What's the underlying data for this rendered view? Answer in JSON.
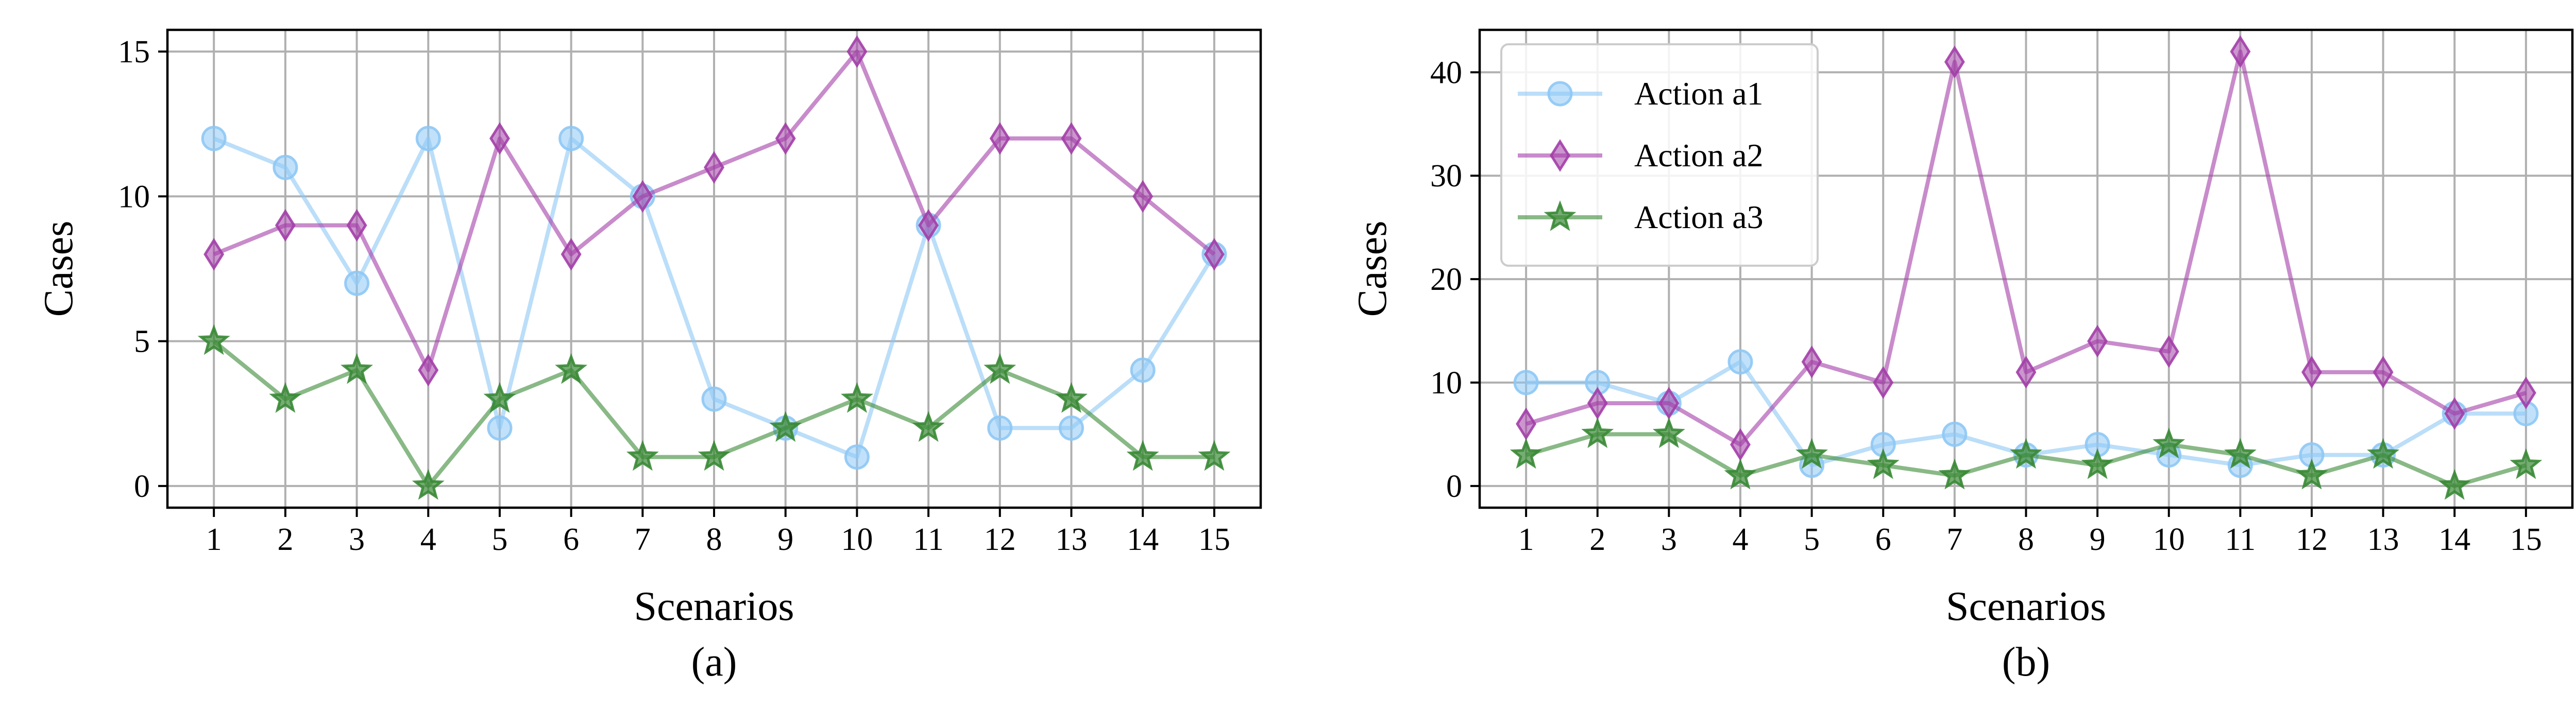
{
  "chart_data": [
    {
      "type": "line",
      "panel_label": "(a)",
      "xlabel": "Scenarios",
      "ylabel": "Cases",
      "x": [
        1,
        2,
        3,
        4,
        5,
        6,
        7,
        8,
        9,
        10,
        11,
        12,
        13,
        14,
        15
      ],
      "xlim": [
        0.35,
        15.65
      ],
      "ylim": [
        -0.75,
        15.75
      ],
      "yticks": [
        0,
        5,
        10,
        15
      ],
      "grid": true,
      "legend": null,
      "series": [
        {
          "name": "Action a1",
          "color": "#8ec8f5",
          "marker": "circle",
          "values": [
            12,
            11,
            7,
            12,
            2,
            12,
            10,
            3,
            2,
            1,
            9,
            2,
            2,
            4,
            8
          ]
        },
        {
          "name": "Action a2",
          "color": "#a33ea8",
          "marker": "thin-diamond",
          "values": [
            8,
            9,
            9,
            4,
            12,
            8,
            10,
            11,
            12,
            15,
            9,
            12,
            12,
            10,
            8
          ]
        },
        {
          "name": "Action a3",
          "color": "#3a8a36",
          "marker": "star",
          "values": [
            5,
            3,
            4,
            0,
            3,
            4,
            1,
            1,
            2,
            3,
            2,
            4,
            3,
            1,
            1
          ]
        }
      ]
    },
    {
      "type": "line",
      "panel_label": "(b)",
      "xlabel": "Scenarios",
      "ylabel": "Cases",
      "x": [
        1,
        2,
        3,
        4,
        5,
        6,
        7,
        8,
        9,
        10,
        11,
        12,
        13,
        14,
        15
      ],
      "xlim": [
        0.35,
        15.65
      ],
      "ylim": [
        -2.1,
        44.1
      ],
      "yticks": [
        0,
        10,
        20,
        30,
        40
      ],
      "grid": true,
      "legend": "top-left",
      "series": [
        {
          "name": "Action a1",
          "color": "#8ec8f5",
          "marker": "circle",
          "values": [
            10,
            10,
            8,
            12,
            2,
            4,
            5,
            3,
            4,
            3,
            2,
            3,
            3,
            7,
            7
          ]
        },
        {
          "name": "Action a2",
          "color": "#a33ea8",
          "marker": "thin-diamond",
          "values": [
            6,
            8,
            8,
            4,
            12,
            10,
            41,
            11,
            14,
            13,
            42,
            11,
            11,
            7,
            9
          ]
        },
        {
          "name": "Action a3",
          "color": "#3a8a36",
          "marker": "star",
          "values": [
            3,
            5,
            5,
            1,
            3,
            2,
            1,
            3,
            2,
            4,
            3,
            1,
            3,
            0,
            2
          ]
        }
      ]
    }
  ]
}
